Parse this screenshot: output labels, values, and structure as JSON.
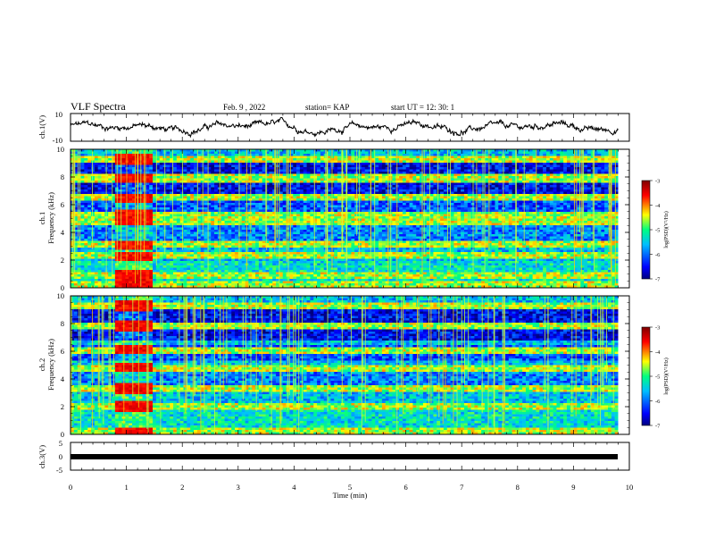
{
  "header": {
    "title": "VLF Spectra",
    "date": "Feb. 9 , 2022",
    "station": "station= KAP",
    "start": "start  UT =   12: 30: 1"
  },
  "chart_data": [
    {
      "type": "line",
      "ylabel": "ch.1(V)",
      "ylim": [
        -10,
        10
      ],
      "y_ticks": [
        "10",
        "-10"
      ],
      "description_series": "noisy waveform around 0 V",
      "series": [
        {
          "values_summary": "fluctuates between about -6 and +8 V over 0-9.8 min"
        }
      ]
    },
    {
      "type": "heatmap",
      "ylabel": "ch.1\nFrequency (kHz)",
      "ylim": [
        0,
        10
      ],
      "y_ticks": [
        "0",
        "2",
        "4",
        "6",
        "8",
        "10"
      ],
      "colorbar": {
        "label": "log(PSD)(V²/Hz)",
        "ticks": [
          "-3",
          "-4",
          "-5",
          "-6",
          "-7"
        ],
        "range": [
          -7,
          -3
        ]
      },
      "enhanced_band_freqs_khz": [
        0.2,
        0.9,
        2.3,
        3.1,
        4.8,
        5.3,
        6.5,
        7.9,
        9.3
      ],
      "burst_interval_min": [
        0.8,
        1.45
      ]
    },
    {
      "type": "heatmap",
      "ylabel": "ch.2\nFrequency (kHz)",
      "ylim": [
        0,
        10
      ],
      "y_ticks": [
        "0",
        "2",
        "4",
        "6",
        "8",
        "10"
      ],
      "colorbar": {
        "label": "log(PSD)(V²/Hz)",
        "ticks": [
          "-3",
          "-4",
          "-5",
          "-6",
          "-7"
        ],
        "range": [
          -7,
          -3
        ]
      },
      "enhanced_band_freqs_khz": [
        0.2,
        2.0,
        3.3,
        4.8,
        6.1,
        7.8,
        9.3
      ],
      "burst_interval_min": [
        0.8,
        1.45
      ]
    },
    {
      "type": "line",
      "ylabel": "ch.3(V)",
      "ylim": [
        -5,
        5
      ],
      "y_ticks": [
        "5",
        "0",
        "-5"
      ],
      "series": [
        {
          "values_summary": "constant near -0.2 V from 0 to 9.8 min"
        }
      ]
    }
  ],
  "x_axis": {
    "label": "Time  (min)",
    "range": [
      0,
      10
    ],
    "ticks": [
      "0",
      "1",
      "2",
      "3",
      "4",
      "5",
      "6",
      "7",
      "8",
      "9",
      "10"
    ]
  },
  "colors": {
    "background": "#ffffff",
    "axis": "#000000",
    "colormap": [
      "#00007f",
      "#0000ff",
      "#00bfff",
      "#00ff80",
      "#ffff00",
      "#ff0000",
      "#7f0000"
    ]
  }
}
